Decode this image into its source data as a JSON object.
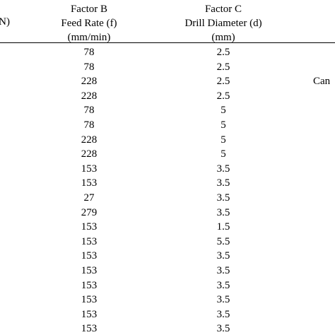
{
  "table": {
    "headers": {
      "factor_a_fragment": "N)",
      "factor_b": {
        "line1": "Factor B",
        "line2": "Feed Rate (f)",
        "line3": "(mm/min)"
      },
      "factor_c": {
        "line1": "Factor C",
        "line2": "Drill Diameter (d)",
        "line3": "(mm)"
      }
    },
    "rows": [
      {
        "feed_rate": "78",
        "drill_diameter": "2.5"
      },
      {
        "feed_rate": "78",
        "drill_diameter": "2.5"
      },
      {
        "feed_rate": "228",
        "drill_diameter": "2.5"
      },
      {
        "feed_rate": "228",
        "drill_diameter": "2.5"
      },
      {
        "feed_rate": "78",
        "drill_diameter": "5"
      },
      {
        "feed_rate": "78",
        "drill_diameter": "5"
      },
      {
        "feed_rate": "228",
        "drill_diameter": "5"
      },
      {
        "feed_rate": "228",
        "drill_diameter": "5"
      },
      {
        "feed_rate": "153",
        "drill_diameter": "3.5"
      },
      {
        "feed_rate": "153",
        "drill_diameter": "3.5"
      },
      {
        "feed_rate": "27",
        "drill_diameter": "3.5"
      },
      {
        "feed_rate": "279",
        "drill_diameter": "3.5"
      },
      {
        "feed_rate": "153",
        "drill_diameter": "1.5"
      },
      {
        "feed_rate": "153",
        "drill_diameter": "5.5"
      },
      {
        "feed_rate": "153",
        "drill_diameter": "3.5"
      },
      {
        "feed_rate": "153",
        "drill_diameter": "3.5"
      },
      {
        "feed_rate": "153",
        "drill_diameter": "3.5"
      },
      {
        "feed_rate": "153",
        "drill_diameter": "3.5"
      },
      {
        "feed_rate": "153",
        "drill_diameter": "3.5"
      },
      {
        "feed_rate": "153",
        "drill_diameter": "3.5"
      }
    ]
  },
  "side_note": "Can"
}
